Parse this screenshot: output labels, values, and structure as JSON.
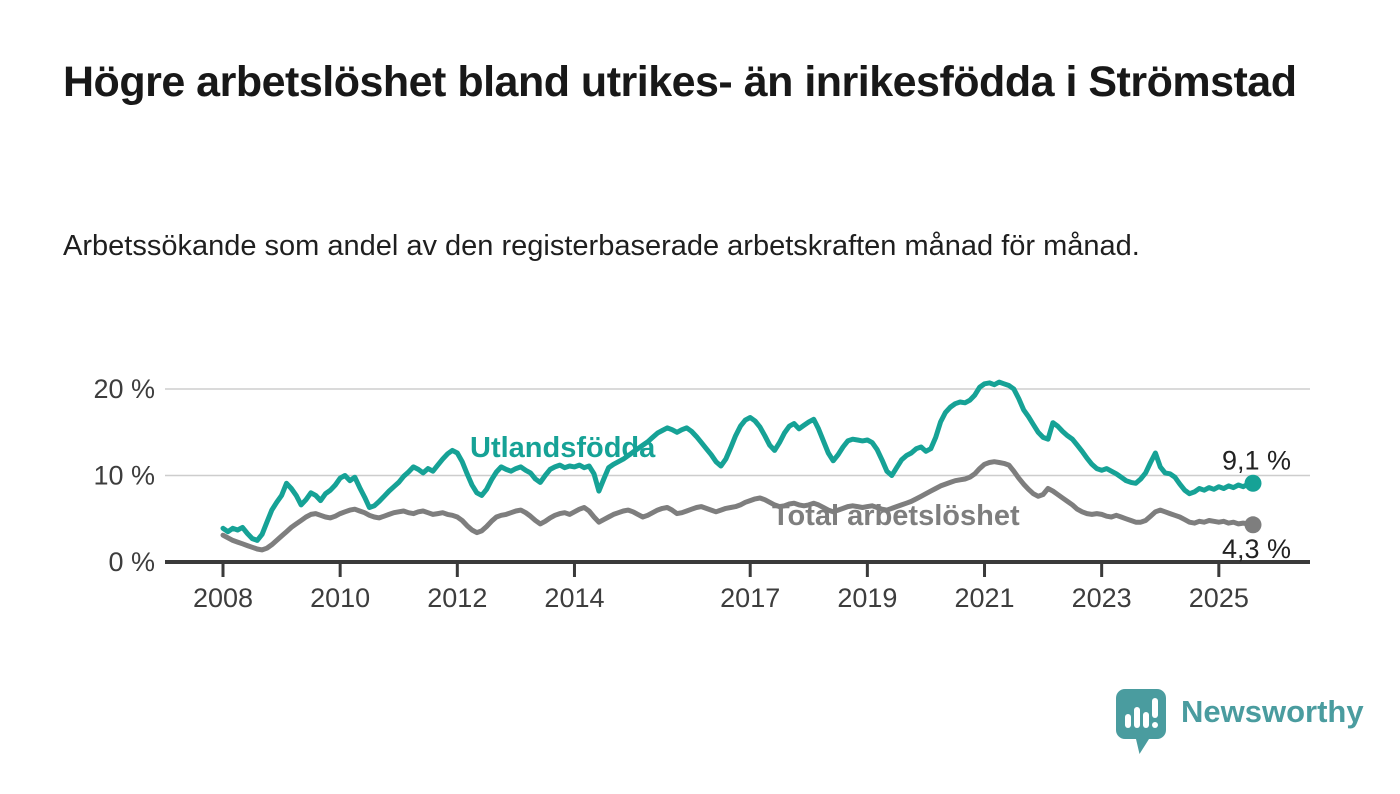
{
  "header": {
    "title": "Högre arbetslöshet bland utrikes- än inrikesfödda i Strömstad",
    "subtitle": "Arbetssökande som andel av den registerbaserade arbetskraften månad för månad."
  },
  "footer": {
    "brand": "Newsworthy"
  },
  "colors": {
    "accent_teal": "#16a296",
    "series_gray": "#7e7e7e",
    "logo_teal": "#4a9c9f",
    "axis_line": "#3a3a3a",
    "axis_text": "#3d3d3d",
    "gridline": "#cdcdcd",
    "value_label_text": "#222222"
  },
  "chart_data": {
    "type": "line",
    "title": "",
    "xlabel": "",
    "ylabel": "",
    "x_start": "2008-01",
    "x_end": "2025-08",
    "x_frequency": "monthly",
    "ylim": [
      0,
      22
    ],
    "grid": true,
    "y_ticks": [
      {
        "value": 20,
        "label": "20 %"
      },
      {
        "value": 10,
        "label": "10 %"
      },
      {
        "value": 0,
        "label": "0 %"
      }
    ],
    "x_ticks": [
      {
        "year": 2008,
        "label": "2008"
      },
      {
        "year": 2010,
        "label": "2010"
      },
      {
        "year": 2012,
        "label": "2012"
      },
      {
        "year": 2014,
        "label": "2014"
      },
      {
        "year": 2017,
        "label": "2017"
      },
      {
        "year": 2019,
        "label": "2019"
      },
      {
        "year": 2021,
        "label": "2021"
      },
      {
        "year": 2023,
        "label": "2023"
      },
      {
        "year": 2025,
        "label": "2025"
      }
    ],
    "series": [
      {
        "name": "Utlandsfödda",
        "color": "#16a296",
        "end_label": "9,1 %",
        "values": [
          3.9,
          3.5,
          3.9,
          3.7,
          4.0,
          3.3,
          2.7,
          2.5,
          3.2,
          4.6,
          6.0,
          6.9,
          7.7,
          9.1,
          8.5,
          7.7,
          6.6,
          7.2,
          8.0,
          7.7,
          7.1,
          7.9,
          8.3,
          8.9,
          9.7,
          10.0,
          9.4,
          9.8,
          8.6,
          7.5,
          6.3,
          6.5,
          7.0,
          7.6,
          8.2,
          8.7,
          9.2,
          9.9,
          10.4,
          11.0,
          10.7,
          10.3,
          10.8,
          10.5,
          11.2,
          11.9,
          12.5,
          12.9,
          12.6,
          11.6,
          10.2,
          8.9,
          8.0,
          7.7,
          8.4,
          9.5,
          10.4,
          11.0,
          10.7,
          10.5,
          10.8,
          11.0,
          10.6,
          10.3,
          9.6,
          9.2,
          10.0,
          10.7,
          11.0,
          11.2,
          10.9,
          11.1,
          11.0,
          11.2,
          10.9,
          11.1,
          10.2,
          8.2,
          9.6,
          10.9,
          11.3,
          11.6,
          11.9,
          12.3,
          12.7,
          13.1,
          13.5,
          13.9,
          14.4,
          14.9,
          15.2,
          15.5,
          15.3,
          15.0,
          15.3,
          15.5,
          15.1,
          14.5,
          13.8,
          13.1,
          12.4,
          11.6,
          11.1,
          11.9,
          13.2,
          14.6,
          15.7,
          16.4,
          16.7,
          16.3,
          15.6,
          14.6,
          13.5,
          12.9,
          13.8,
          14.9,
          15.7,
          16.0,
          15.4,
          15.8,
          16.2,
          16.5,
          15.4,
          14.0,
          12.6,
          11.7,
          12.4,
          13.3,
          14.0,
          14.2,
          14.1,
          14.0,
          14.1,
          13.8,
          13.0,
          11.8,
          10.5,
          10.0,
          10.9,
          11.8,
          12.3,
          12.6,
          13.1,
          13.3,
          12.8,
          13.1,
          14.4,
          16.2,
          17.3,
          17.9,
          18.3,
          18.5,
          18.4,
          18.7,
          19.3,
          20.2,
          20.6,
          20.7,
          20.5,
          20.8,
          20.6,
          20.4,
          20.0,
          18.9,
          17.6,
          16.8,
          15.9,
          15.0,
          14.4,
          14.2,
          16.1,
          15.7,
          15.1,
          14.6,
          14.2,
          13.5,
          12.8,
          12.0,
          11.3,
          10.8,
          10.6,
          10.8,
          10.5,
          10.2,
          9.8,
          9.4,
          9.2,
          9.1,
          9.6,
          10.3,
          11.5,
          12.6,
          11.0,
          10.3,
          10.2,
          9.8,
          9.0,
          8.3,
          7.9,
          8.1,
          8.5,
          8.3,
          8.6,
          8.4,
          8.7,
          8.5,
          8.8,
          8.6,
          8.9,
          8.7,
          9.0,
          9.1
        ]
      },
      {
        "name": "Total arbetslöshet",
        "color": "#7e7e7e",
        "end_label": "4,3 %",
        "values": [
          3.1,
          2.8,
          2.5,
          2.3,
          2.1,
          1.9,
          1.7,
          1.5,
          1.4,
          1.6,
          2.0,
          2.5,
          3.0,
          3.5,
          4.0,
          4.4,
          4.8,
          5.2,
          5.5,
          5.6,
          5.4,
          5.2,
          5.1,
          5.3,
          5.6,
          5.8,
          6.0,
          6.1,
          5.9,
          5.7,
          5.4,
          5.2,
          5.1,
          5.3,
          5.5,
          5.7,
          5.8,
          5.9,
          5.7,
          5.6,
          5.8,
          5.9,
          5.7,
          5.5,
          5.6,
          5.7,
          5.5,
          5.4,
          5.2,
          4.8,
          4.2,
          3.7,
          3.4,
          3.6,
          4.1,
          4.7,
          5.2,
          5.4,
          5.5,
          5.7,
          5.9,
          6.0,
          5.7,
          5.3,
          4.8,
          4.4,
          4.7,
          5.1,
          5.4,
          5.6,
          5.7,
          5.5,
          5.8,
          6.1,
          6.3,
          5.9,
          5.2,
          4.6,
          4.9,
          5.2,
          5.5,
          5.7,
          5.9,
          6.0,
          5.8,
          5.5,
          5.2,
          5.4,
          5.7,
          6.0,
          6.2,
          6.3,
          6.0,
          5.6,
          5.7,
          5.9,
          6.1,
          6.3,
          6.4,
          6.2,
          6.0,
          5.8,
          6.0,
          6.2,
          6.3,
          6.4,
          6.6,
          6.9,
          7.1,
          7.3,
          7.4,
          7.2,
          6.9,
          6.6,
          6.4,
          6.5,
          6.7,
          6.8,
          6.6,
          6.5,
          6.6,
          6.8,
          6.6,
          6.3,
          6.0,
          5.8,
          6.0,
          6.2,
          6.4,
          6.5,
          6.4,
          6.3,
          6.4,
          6.5,
          6.3,
          6.1,
          6.0,
          6.2,
          6.4,
          6.6,
          6.8,
          7.0,
          7.3,
          7.6,
          7.9,
          8.2,
          8.5,
          8.8,
          9.0,
          9.2,
          9.4,
          9.5,
          9.6,
          9.8,
          10.2,
          10.8,
          11.3,
          11.5,
          11.6,
          11.5,
          11.4,
          11.2,
          10.5,
          9.7,
          9.0,
          8.4,
          7.9,
          7.6,
          7.8,
          8.5,
          8.2,
          7.8,
          7.4,
          7.0,
          6.6,
          6.1,
          5.8,
          5.6,
          5.5,
          5.6,
          5.5,
          5.3,
          5.2,
          5.4,
          5.2,
          5.0,
          4.8,
          4.6,
          4.6,
          4.8,
          5.3,
          5.8,
          6.0,
          5.8,
          5.6,
          5.4,
          5.2,
          4.9,
          4.6,
          4.5,
          4.7,
          4.6,
          4.8,
          4.7,
          4.6,
          4.7,
          4.5,
          4.6,
          4.4,
          4.5,
          4.4,
          4.3
        ]
      }
    ],
    "legend_position": "inline-labels-on-chart"
  }
}
